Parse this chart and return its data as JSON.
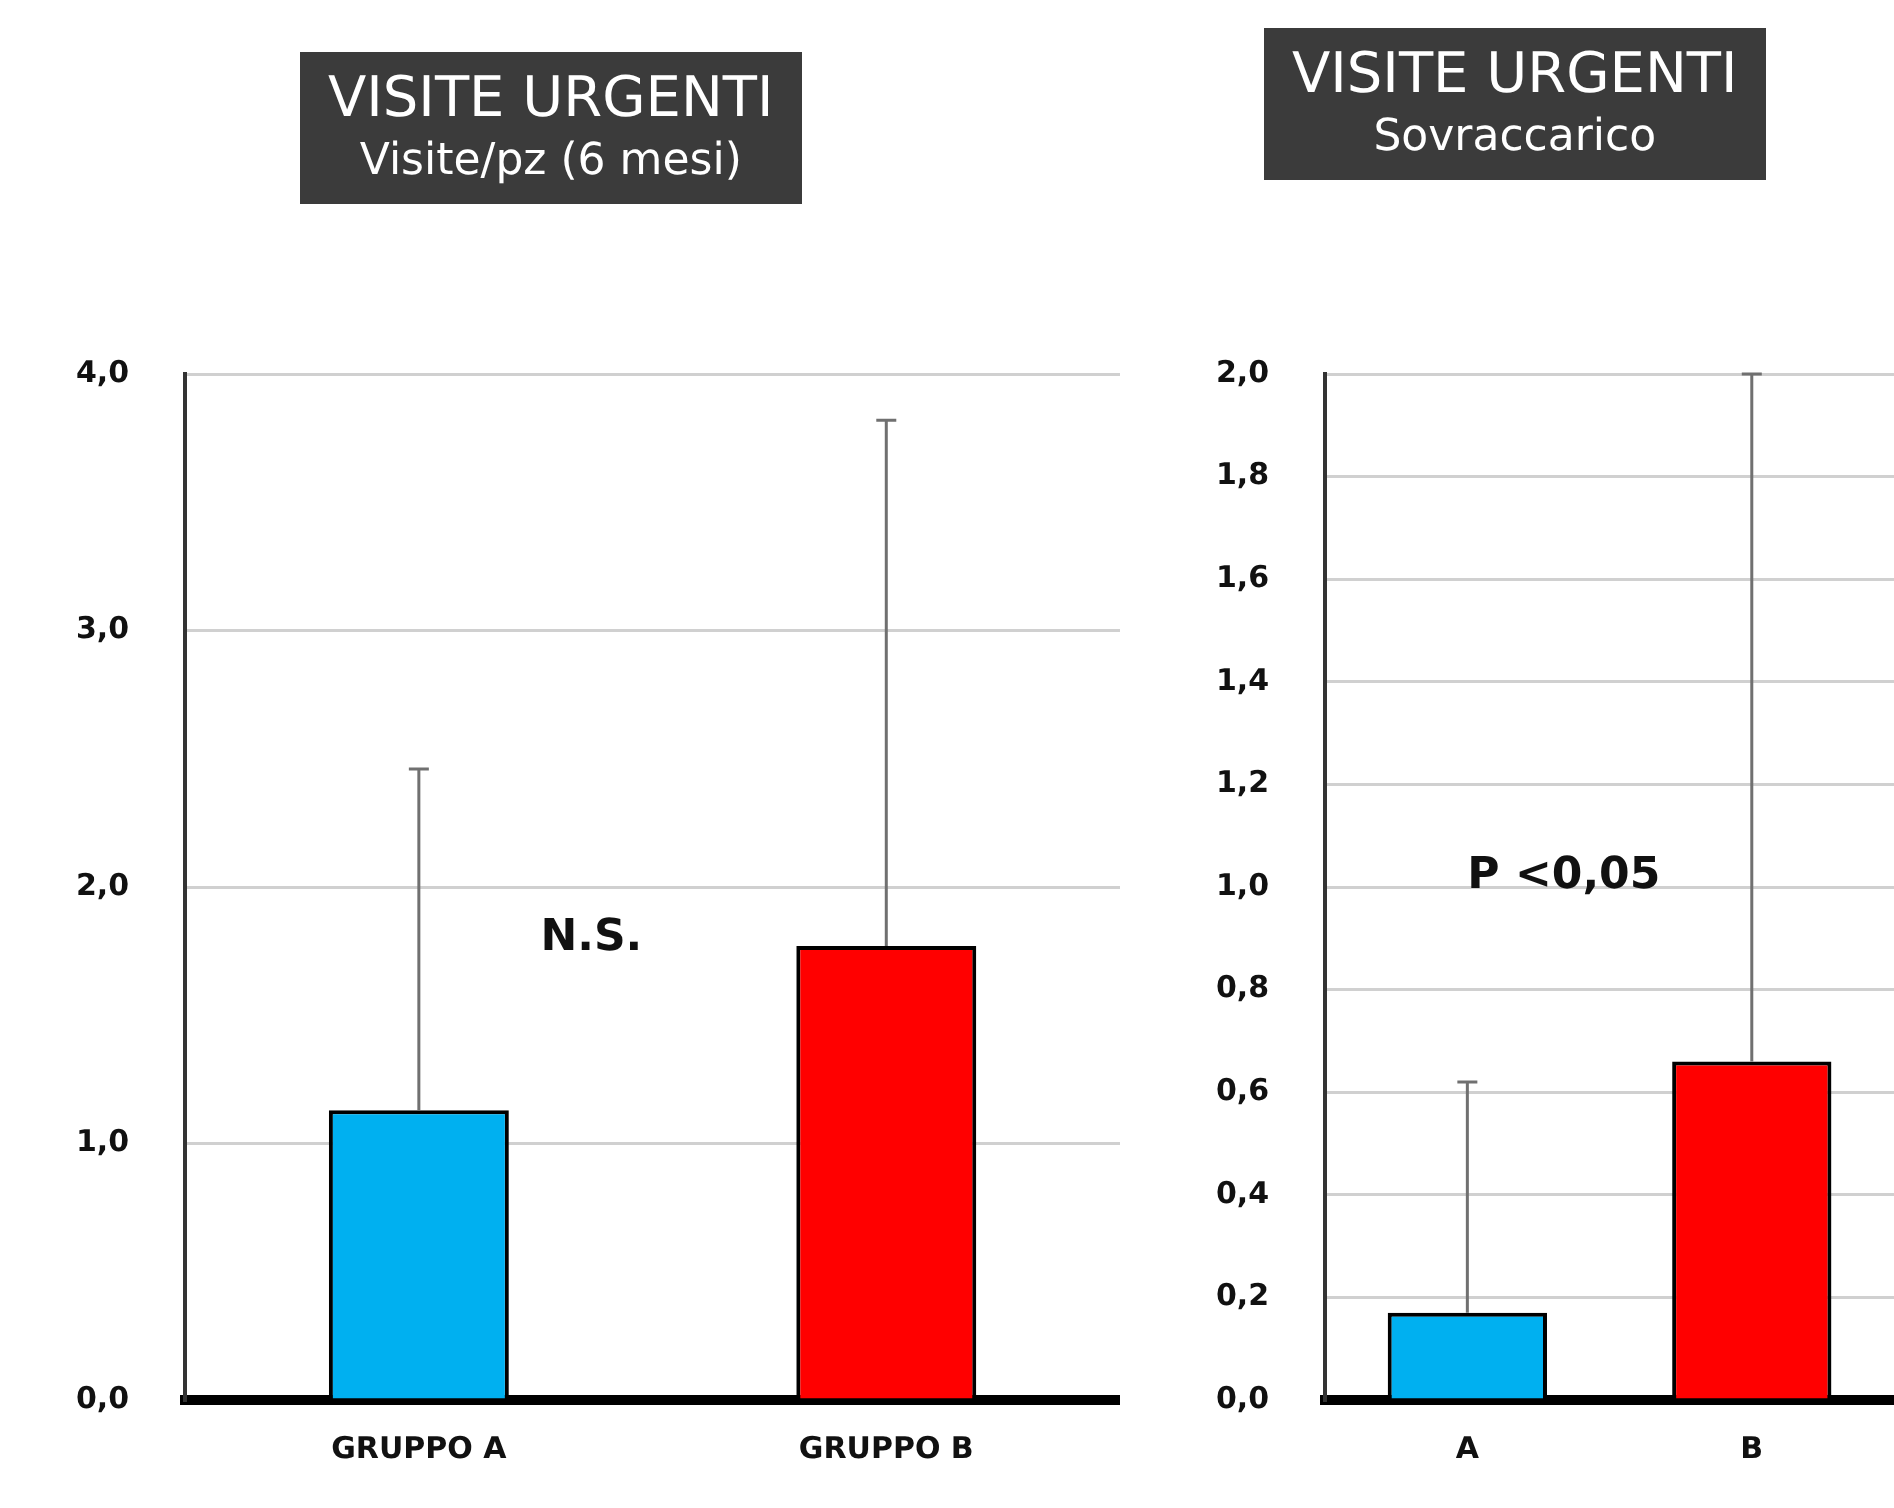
{
  "chart_data": [
    {
      "type": "bar",
      "title": "VISITE URGENTI",
      "subtitle": "Visite/pz (6 mesi)",
      "categories": [
        "GRUPPO A",
        "GRUPPO B"
      ],
      "values": [
        1.13,
        1.77
      ],
      "colors": [
        "#00b0f0",
        "#ff0000"
      ],
      "errors": [
        [
          1.13,
          2.46
        ],
        [
          1.77,
          3.82
        ]
      ],
      "ylim": [
        0,
        4
      ],
      "yticks": [
        {
          "value": 0,
          "label": "0,0"
        },
        {
          "value": 1,
          "label": "1,0"
        },
        {
          "value": 2,
          "label": "2,0"
        },
        {
          "value": 3,
          "label": "3,0"
        },
        {
          "value": 4,
          "label": "4,0"
        }
      ],
      "grid": "y",
      "annotations": [
        "N.S."
      ]
    },
    {
      "type": "bar",
      "title": "VISITE URGENTI",
      "subtitle": "Sovraccarico",
      "categories": [
        "A",
        "B"
      ],
      "values": [
        0.17,
        0.66
      ],
      "colors": [
        "#00b0f0",
        "#ff0000"
      ],
      "errors": [
        [
          0.17,
          0.62
        ],
        [
          0.66,
          2.0
        ]
      ],
      "ylim": [
        0,
        2
      ],
      "yticks": [
        {
          "value": 0,
          "label": "0,0"
        },
        {
          "value": 0.2,
          "label": "0,2"
        },
        {
          "value": 0.4,
          "label": "0,4"
        },
        {
          "value": 0.6,
          "label": "0,6"
        },
        {
          "value": 0.8,
          "label": "0,8"
        },
        {
          "value": 1,
          "label": "1,0"
        },
        {
          "value": 1.2,
          "label": "1,2"
        },
        {
          "value": 1.4,
          "label": "1,4"
        },
        {
          "value": 1.6,
          "label": "1,6"
        },
        {
          "value": 1.8,
          "label": "1,8"
        },
        {
          "value": 2,
          "label": "2,0"
        }
      ],
      "grid": "y",
      "annotations": [
        "P <0,05"
      ]
    }
  ]
}
